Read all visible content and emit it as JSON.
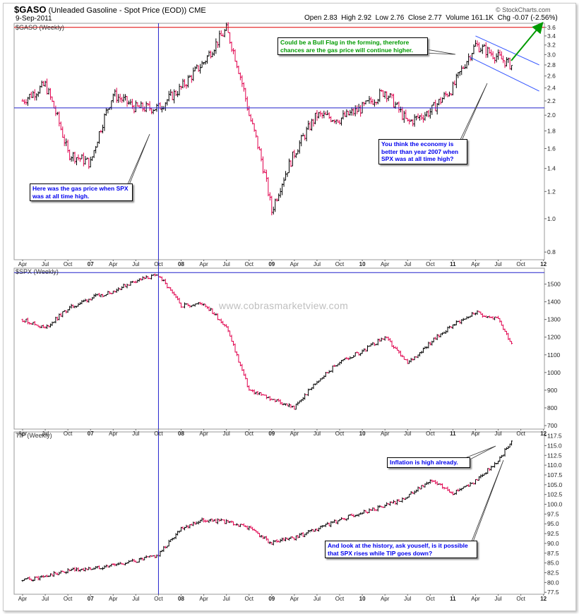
{
  "header": {
    "symbol": "$GASO",
    "description": "(Unleaded Gasoline - Spot Price (EOD)) CME",
    "date": "9-Sep-2011",
    "open_label": "Open",
    "open": "2.83",
    "high_label": "High",
    "high": "2.92",
    "low_label": "Low",
    "low": "2.76",
    "close_label": "Close",
    "close": "2.77",
    "volume_label": "Volume",
    "volume": "161.1K",
    "chg_label": "Chg",
    "chg": "-0.07 (-2.56%)",
    "source": "© StockCharts.com"
  },
  "watermark": "www.cobrasmarketview.com",
  "colors": {
    "up": "#000000",
    "down": "#e0004d",
    "guide": "#2222cc",
    "resistance": "#e00000",
    "arrow": "#009a00",
    "channel": "#3355ff"
  },
  "x_axis": {
    "labels": [
      "Apr",
      "Jul",
      "Oct",
      "07",
      "Apr",
      "Jul",
      "Oct",
      "08",
      "Apr",
      "Jul",
      "Oct",
      "09",
      "Apr",
      "Jul",
      "Oct",
      "10",
      "Apr",
      "Jul",
      "Oct",
      "11",
      "Apr",
      "Jul",
      "Oct",
      "12"
    ]
  },
  "chart_data": [
    {
      "type": "line",
      "panel_label": "$GASO (Weekly)",
      "ylabel": "",
      "y_scale": "log",
      "ylim": [
        0.76,
        3.7
      ],
      "yticks": [
        "0.8",
        "1.0",
        "1.2",
        "1.4",
        "1.6",
        "1.8",
        "2.0",
        "2.2",
        "2.4",
        "2.6",
        "2.8",
        "3.0",
        "3.2",
        "3.4",
        "3.6"
      ],
      "x": [
        "2006-04",
        "2006-07",
        "2006-10",
        "2007-01",
        "2007-04",
        "2007-07",
        "2007-10",
        "2008-01",
        "2008-04",
        "2008-07",
        "2008-10",
        "2009-01",
        "2009-04",
        "2009-07",
        "2009-10",
        "2010-01",
        "2010-04",
        "2010-07",
        "2010-10",
        "2011-01",
        "2011-04",
        "2011-07",
        "2011-09"
      ],
      "series": [
        {
          "values": [
            2.2,
            2.45,
            1.55,
            1.45,
            2.3,
            2.1,
            2.1,
            2.4,
            2.85,
            3.55,
            2.0,
            1.05,
            1.55,
            2.0,
            1.95,
            2.1,
            2.35,
            1.9,
            2.05,
            2.4,
            3.2,
            2.95,
            2.77
          ]
        }
      ],
      "annotations": [
        "Could be a Bull Flag in the forming, therefore chances are the gas price will continue higher.",
        "Here was the gas price when SPX was at all time high.",
        "You think the economy is better than year 2007 when SPX was at all time high?"
      ]
    },
    {
      "type": "line",
      "panel_label": "$SPX (Weekly)",
      "ylabel": "",
      "ylim": [
        680,
        1590
      ],
      "yticks": [
        "700",
        "800",
        "900",
        "1000",
        "1100",
        "1200",
        "1300",
        "1400",
        "1500"
      ],
      "x": [
        "2006-04",
        "2006-07",
        "2006-10",
        "2007-01",
        "2007-04",
        "2007-07",
        "2007-10",
        "2008-01",
        "2008-04",
        "2008-07",
        "2008-10",
        "2009-01",
        "2009-04",
        "2009-07",
        "2009-10",
        "2010-01",
        "2010-04",
        "2010-07",
        "2010-10",
        "2011-01",
        "2011-04",
        "2011-07",
        "2011-09"
      ],
      "series": [
        {
          "values": [
            1300,
            1250,
            1360,
            1420,
            1460,
            1520,
            1550,
            1380,
            1390,
            1260,
            900,
            850,
            800,
            950,
            1060,
            1120,
            1200,
            1050,
            1170,
            1270,
            1340,
            1300,
            1150
          ]
        }
      ]
    },
    {
      "type": "line",
      "panel_label": "TIP (Weekly)",
      "ylabel": "",
      "ylim": [
        77.0,
        118.5
      ],
      "yticks": [
        "77.5",
        "80.0",
        "82.5",
        "85.0",
        "87.5",
        "90.0",
        "92.5",
        "95.0",
        "97.5",
        "100.0",
        "102.5",
        "105.0",
        "107.5",
        "110.0",
        "112.5",
        "115.0",
        "117.5"
      ],
      "x": [
        "2006-04",
        "2006-07",
        "2006-10",
        "2007-01",
        "2007-04",
        "2007-07",
        "2007-10",
        "2008-01",
        "2008-04",
        "2008-07",
        "2008-10",
        "2009-01",
        "2009-04",
        "2009-07",
        "2009-10",
        "2010-01",
        "2010-04",
        "2010-07",
        "2010-10",
        "2011-01",
        "2011-04",
        "2011-07",
        "2011-09"
      ],
      "series": [
        {
          "values": [
            80.5,
            81.5,
            83.0,
            83.5,
            84.5,
            85.5,
            87.0,
            94.0,
            96.0,
            95.5,
            94.0,
            90.0,
            91.5,
            93.5,
            96.0,
            98.0,
            99.5,
            102.0,
            106.0,
            103.0,
            106.0,
            111.0,
            117.0
          ]
        }
      ],
      "annotations": [
        "Inflation is high already.",
        "And look at the history, ask youself, is it possible that SPX rises while TIP goes down?"
      ]
    }
  ]
}
